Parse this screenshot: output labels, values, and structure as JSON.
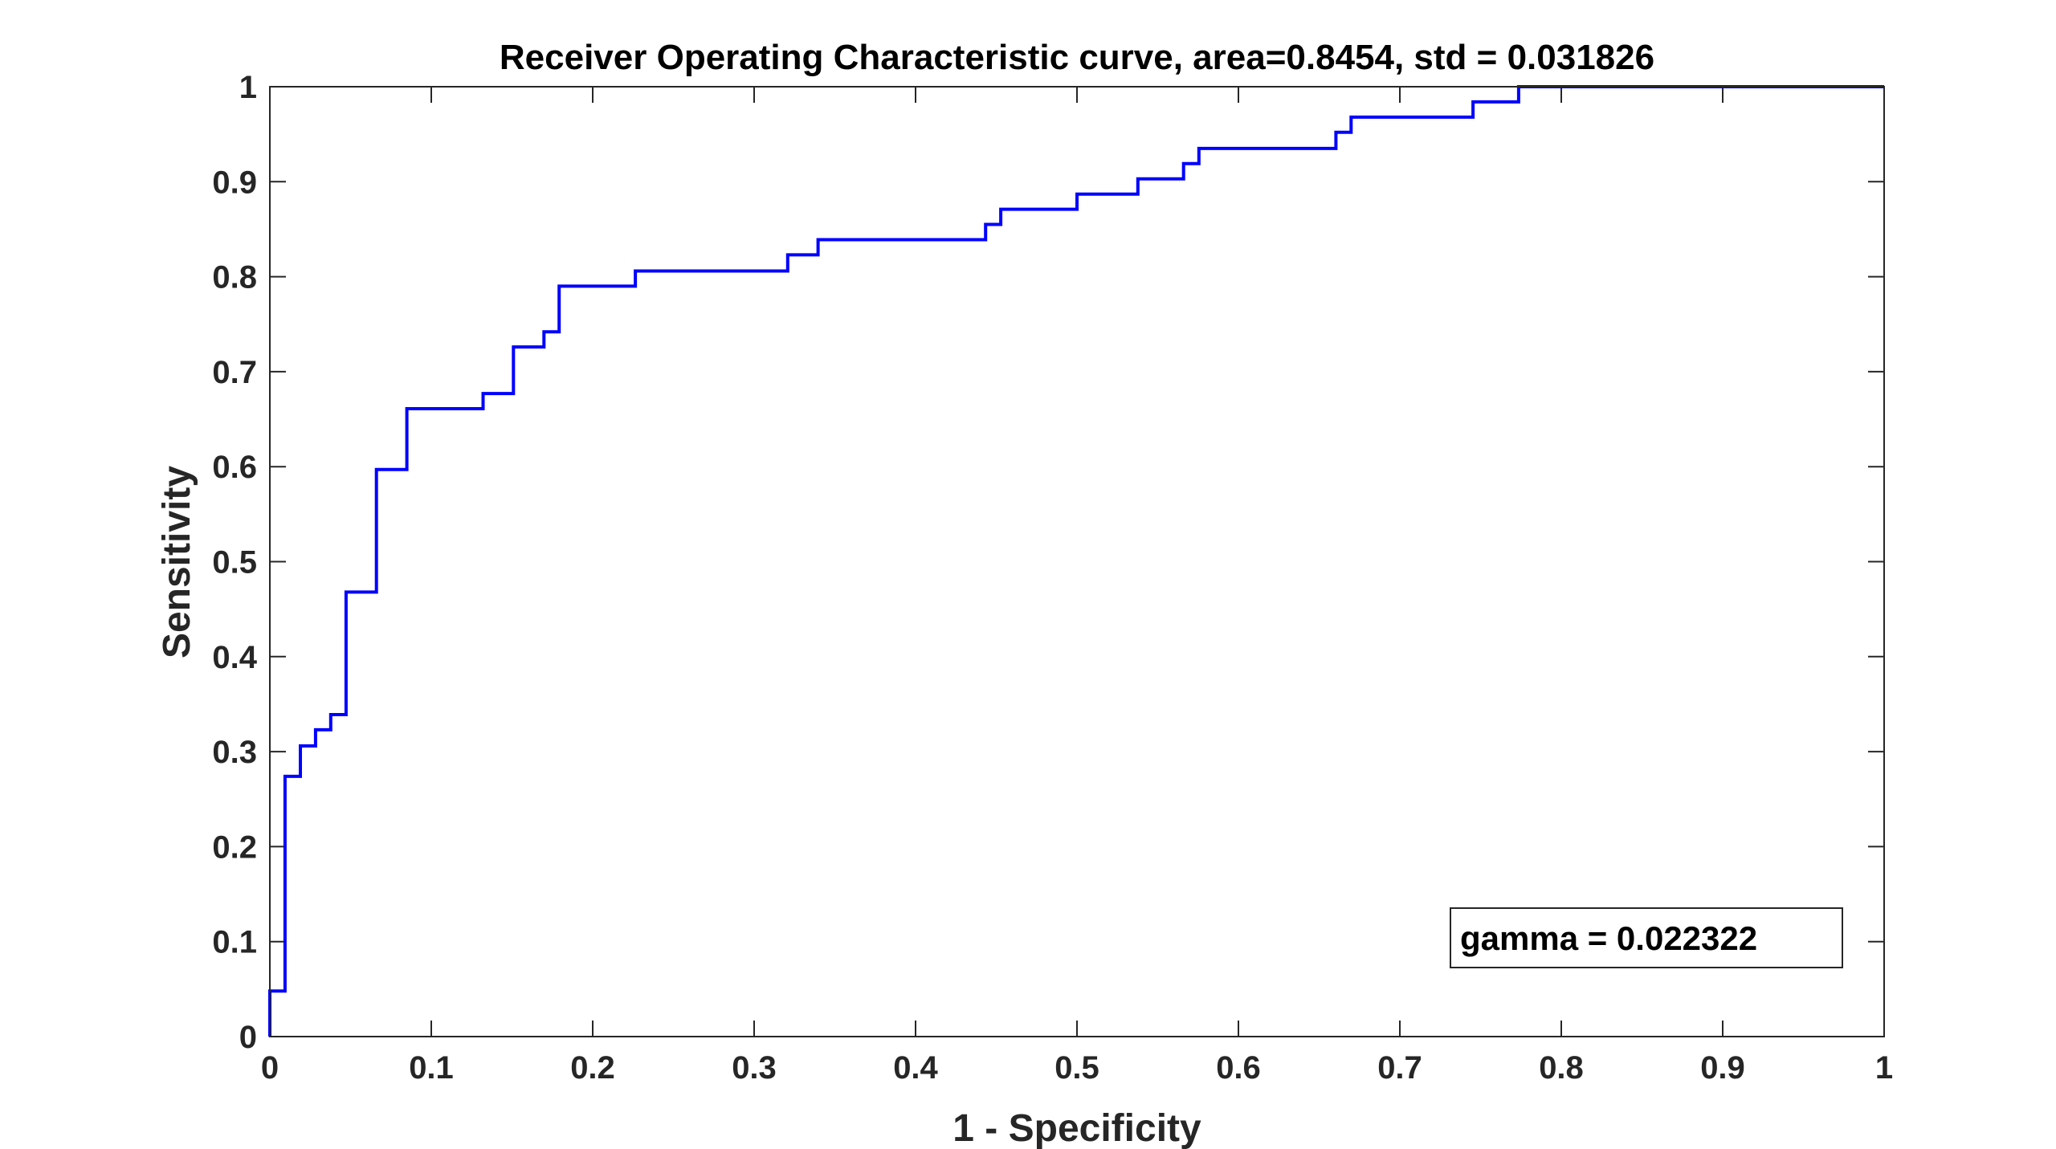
{
  "chart_data": {
    "type": "line",
    "title": "Receiver Operating Characteristic curve, area=0.8454, std = 0.031826",
    "xlabel": "1 - Specificity",
    "ylabel": "Sensitivity",
    "xlim": [
      0,
      1
    ],
    "ylim": [
      0,
      1
    ],
    "xticks": [
      "0",
      "0.1",
      "0.2",
      "0.3",
      "0.4",
      "0.5",
      "0.6",
      "0.7",
      "0.8",
      "0.9",
      "1"
    ],
    "yticks": [
      "0",
      "0.1",
      "0.2",
      "0.3",
      "0.4",
      "0.5",
      "0.6",
      "0.7",
      "0.8",
      "0.9",
      "1"
    ],
    "grid": false,
    "line_color": "#0000FF",
    "annotation": "gamma = 0.022322",
    "annotation_position": "bottom-right",
    "series": [
      {
        "x": [
          0,
          0,
          0.0094,
          0.0094,
          0.0189,
          0.0189,
          0.0283,
          0.0283,
          0.0377,
          0.0377,
          0.0472,
          0.0472,
          0.066,
          0.066,
          0.0849,
          0.0849,
          0.1321,
          0.1321,
          0.1509,
          0.1509,
          0.1698,
          0.1698,
          0.1792,
          0.1792,
          0.2264,
          0.2264,
          0.3208,
          0.3208,
          0.3396,
          0.3396,
          0.4434,
          0.4434,
          0.4528,
          0.4528,
          0.5,
          0.5,
          0.5377,
          0.5377,
          0.566,
          0.566,
          0.5755,
          0.5755,
          0.6604,
          0.6604,
          0.6698,
          0.6698,
          0.7453,
          0.7453,
          0.7736,
          0.7736,
          1.0
        ],
        "y": [
          0,
          0.048,
          0.048,
          0.274,
          0.274,
          0.306,
          0.306,
          0.323,
          0.323,
          0.339,
          0.339,
          0.468,
          0.468,
          0.597,
          0.597,
          0.661,
          0.661,
          0.677,
          0.677,
          0.726,
          0.726,
          0.742,
          0.742,
          0.79,
          0.79,
          0.806,
          0.806,
          0.823,
          0.823,
          0.839,
          0.839,
          0.855,
          0.855,
          0.871,
          0.871,
          0.887,
          0.887,
          0.903,
          0.903,
          0.919,
          0.919,
          0.935,
          0.935,
          0.952,
          0.952,
          0.968,
          0.968,
          0.984,
          0.984,
          1.0,
          1.0
        ]
      }
    ]
  }
}
